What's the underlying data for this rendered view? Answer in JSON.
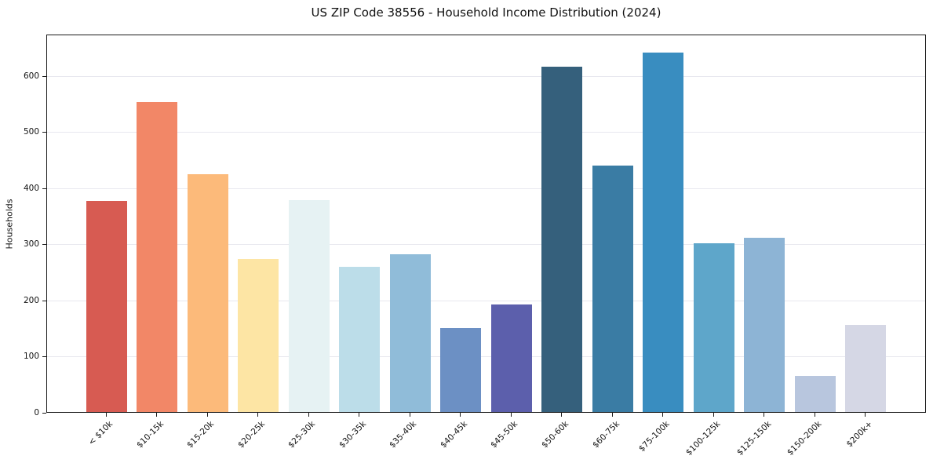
{
  "chart_data": {
    "type": "bar",
    "title": "US ZIP Code 38556 - Household Income Distribution (2024)",
    "xlabel": "",
    "ylabel": "Households",
    "categories": [
      "< $10k",
      "$10-15k",
      "$15-20k",
      "$20-25k",
      "$25-30k",
      "$30-35k",
      "$35-40k",
      "$40-45k",
      "$45-50k",
      "$50-60k",
      "$60-75k",
      "$75-100k",
      "$100-125k",
      "$125-150k",
      "$150-200k",
      "$200k+"
    ],
    "values": [
      376,
      553,
      424,
      272,
      378,
      258,
      281,
      150,
      192,
      615,
      439,
      641,
      301,
      311,
      64,
      155
    ],
    "bar_colors": [
      "#d75b52",
      "#f28767",
      "#fcba7a",
      "#fde5a4",
      "#e6f2f3",
      "#bcdde9",
      "#90bcd9",
      "#6c90c4",
      "#5c5fac",
      "#35607c",
      "#3a7ca4",
      "#398dc0",
      "#5ea6ca",
      "#8db4d5",
      "#b8c6de",
      "#d5d7e5"
    ],
    "ylim": [
      0,
      674
    ],
    "yticks": [
      0,
      100,
      200,
      300,
      400,
      500,
      600
    ],
    "grid": "horizontal",
    "legend": "none",
    "axis_color": "#1a1a1a",
    "gridline_color": "#e8e8ef"
  }
}
